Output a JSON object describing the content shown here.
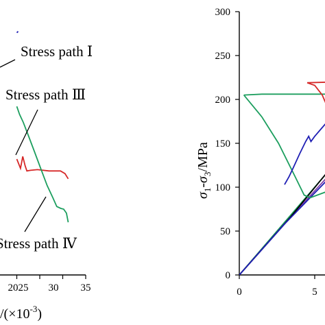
{
  "chart_data": [
    {
      "type": "line",
      "panel": "left",
      "xlabel": "(×10-3)",
      "x_ticks": [
        "20",
        "25",
        "30",
        "35"
      ],
      "xlim": [
        20,
        35
      ],
      "ylim": [
        60,
        260
      ],
      "grid": false,
      "annotations": [
        "Stress path Ⅰ",
        "Stress path Ⅲ",
        "Stress path Ⅳ"
      ],
      "series": [
        {
          "color": "#1f1fb4",
          "values": [
            [
              20.0,
              244.0
            ],
            [
              20.3,
              245.0
            ]
          ]
        },
        {
          "color": "#d62828",
          "values": [
            [
              20.0,
              148.0
            ],
            [
              20.8,
              141.0
            ],
            [
              21.3,
              150.0
            ],
            [
              21.8,
              143.0
            ],
            [
              22.2,
              139.0
            ],
            [
              23.0,
              139.5
            ],
            [
              24.5,
              140.0
            ],
            [
              27.0,
              139.0
            ],
            [
              29.5,
              139.0
            ],
            [
              30.5,
              137.0
            ],
            [
              31.2,
              133.0
            ]
          ]
        },
        {
          "color": "#1c9e5e",
          "values": [
            [
              20.0,
              188.0
            ],
            [
              20.6,
              182.0
            ],
            [
              21.4,
              176.0
            ],
            [
              22.5,
              166.0
            ],
            [
              23.8,
              154.0
            ],
            [
              25.2,
              141.0
            ],
            [
              26.6,
              128.0
            ],
            [
              27.8,
              119.0
            ],
            [
              28.7,
              112.0
            ],
            [
              29.6,
              110.5
            ],
            [
              30.2,
              110.0
            ],
            [
              30.8,
              107.0
            ],
            [
              31.2,
              100.0
            ]
          ]
        }
      ]
    },
    {
      "type": "line",
      "panel": "right",
      "ylabel": "σ1-σ3/MPa",
      "ylim": [
        0,
        300
      ],
      "xlim": [
        0,
        6.5
      ],
      "y_ticks": [
        "0",
        "50",
        "100",
        "150",
        "200",
        "250",
        "300"
      ],
      "x_ticks": [
        "0",
        "5"
      ],
      "grid": false,
      "series": [
        {
          "color": "#1c9e5e",
          "values": [
            [
              0.0,
              0.0
            ],
            [
              3.0,
              60.0
            ],
            [
              6.5,
              130.0
            ]
          ]
        },
        {
          "color": "#7d3fa8",
          "values": [
            [
              0.0,
              0.0
            ],
            [
              3.2,
              62.0
            ],
            [
              6.5,
              124.0
            ]
          ]
        },
        {
          "color": "#000000",
          "values": [
            [
              0.0,
              0.0
            ],
            [
              3.4,
              66.0
            ],
            [
              6.5,
              131.0
            ]
          ]
        },
        {
          "color": "#1f1fb4",
          "values": [
            [
              0.0,
              0.0
            ],
            [
              3.0,
              58.0
            ],
            [
              6.5,
              120.0
            ]
          ]
        },
        {
          "color": "#1c9e5e",
          "values": [
            [
              0.3,
              205.0
            ],
            [
              1.5,
              206.0
            ],
            [
              3.5,
              206.0
            ],
            [
              5.5,
              206.0
            ],
            [
              6.5,
              206.0
            ],
            [
              6.5,
              120.0
            ],
            [
              5.8,
              95.0
            ],
            [
              4.7,
              88.0
            ],
            [
              4.3,
              91.0
            ],
            [
              3.7,
              112.0
            ],
            [
              2.6,
              150.0
            ],
            [
              1.5,
              180.0
            ],
            [
              0.3,
              205.0
            ]
          ]
        },
        {
          "color": "#d62828",
          "values": [
            [
              4.5,
              219.0
            ],
            [
              6.5,
              220.0
            ],
            [
              6.5,
              160.0
            ],
            [
              6.0,
              185.0
            ],
            [
              5.5,
              205.0
            ],
            [
              5.0,
              216.0
            ],
            [
              4.5,
              219.0
            ]
          ]
        },
        {
          "color": "#1f1fb4",
          "values": [
            [
              3.0,
              103.0
            ],
            [
              3.3,
              112.0
            ],
            [
              3.6,
              123.0
            ],
            [
              4.0,
              138.0
            ],
            [
              4.4,
              152.0
            ],
            [
              4.6,
              158.0
            ],
            [
              4.75,
              152.0
            ],
            [
              5.0,
              158.0
            ],
            [
              5.5,
              168.0
            ],
            [
              6.0,
              178.0
            ],
            [
              6.5,
              188.0
            ]
          ]
        }
      ]
    }
  ]
}
